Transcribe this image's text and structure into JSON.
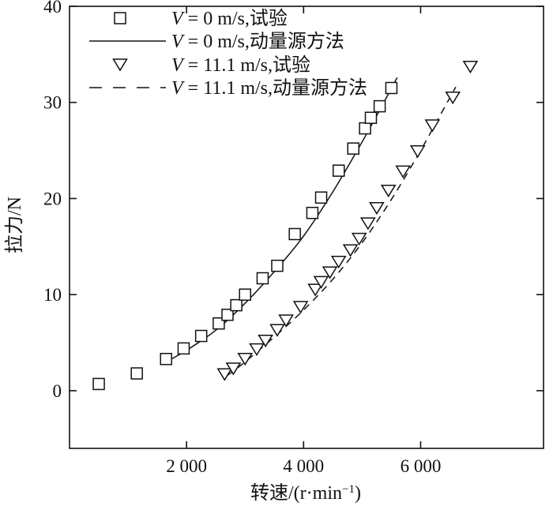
{
  "chart_data": {
    "type": "scatter",
    "title": "",
    "xlabel": "转速/(r·min",
    "xlabel_sup": "−1",
    "xlabel_close": ")",
    "ylabel": "拉力/N",
    "xlim": [
      0,
      8100
    ],
    "ylim": [
      -6,
      40
    ],
    "x_ticks": [
      2000,
      4000,
      6000
    ],
    "x_tick_labels": [
      "2 000",
      "4 000",
      "6 000"
    ],
    "y_ticks": [
      0,
      10,
      20,
      30,
      40
    ],
    "y_tick_labels": [
      "0",
      "10",
      "20",
      "30",
      "40"
    ],
    "grid": false,
    "legend_position": "top-left",
    "series": [
      {
        "label_var": "V",
        "label_rest": " = 0 m/s,试验",
        "marker": "square",
        "points": [
          [
            500,
            0.7
          ],
          [
            1150,
            1.8
          ],
          [
            1650,
            3.3
          ],
          [
            1950,
            4.4
          ],
          [
            2250,
            5.7
          ],
          [
            2550,
            7.0
          ],
          [
            2700,
            7.9
          ],
          [
            2850,
            8.9
          ],
          [
            3000,
            10.0
          ],
          [
            3300,
            11.7
          ],
          [
            3550,
            13.0
          ],
          [
            3850,
            16.3
          ],
          [
            4150,
            18.5
          ],
          [
            4300,
            20.1
          ],
          [
            4600,
            22.9
          ],
          [
            4850,
            25.2
          ],
          [
            5050,
            27.3
          ],
          [
            5150,
            28.4
          ],
          [
            5300,
            29.6
          ],
          [
            5500,
            31.5
          ]
        ]
      },
      {
        "label_var": "V",
        "label_rest": " = 0 m/s,动量源方法",
        "line": "solid",
        "curve": [
          [
            1650,
            3.0
          ],
          [
            2000,
            4.2
          ],
          [
            2500,
            6.3
          ],
          [
            3000,
            9.1
          ],
          [
            3500,
            12.4
          ],
          [
            4000,
            16.1
          ],
          [
            4500,
            20.7
          ],
          [
            5000,
            25.9
          ],
          [
            5300,
            29.2
          ],
          [
            5600,
            32.6
          ]
        ]
      },
      {
        "label_var": "V",
        "label_rest": " = 11.1 m/s,试验",
        "marker": "triangle-down",
        "points": [
          [
            2650,
            1.7
          ],
          [
            2800,
            2.3
          ],
          [
            3000,
            3.3
          ],
          [
            3200,
            4.3
          ],
          [
            3350,
            5.2
          ],
          [
            3550,
            6.3
          ],
          [
            3700,
            7.3
          ],
          [
            3950,
            8.7
          ],
          [
            4200,
            10.5
          ],
          [
            4300,
            11.3
          ],
          [
            4450,
            12.3
          ],
          [
            4600,
            13.4
          ],
          [
            4800,
            14.6
          ],
          [
            4950,
            15.8
          ],
          [
            5100,
            17.4
          ],
          [
            5250,
            19.0
          ],
          [
            5450,
            20.8
          ],
          [
            5700,
            22.8
          ],
          [
            5950,
            24.9
          ],
          [
            6200,
            27.6
          ],
          [
            6550,
            30.5
          ],
          [
            6850,
            33.7
          ]
        ]
      },
      {
        "label_var": "V",
        "label_rest": " = 11.1 m/s,动量源方法",
        "line": "dashed",
        "curve": [
          [
            2700,
            1.6
          ],
          [
            3000,
            3.0
          ],
          [
            3500,
            5.6
          ],
          [
            4000,
            8.4
          ],
          [
            4500,
            11.6
          ],
          [
            5000,
            15.4
          ],
          [
            5500,
            19.9
          ],
          [
            6000,
            25.0
          ],
          [
            6300,
            28.3
          ],
          [
            6600,
            31.6
          ]
        ]
      }
    ]
  }
}
